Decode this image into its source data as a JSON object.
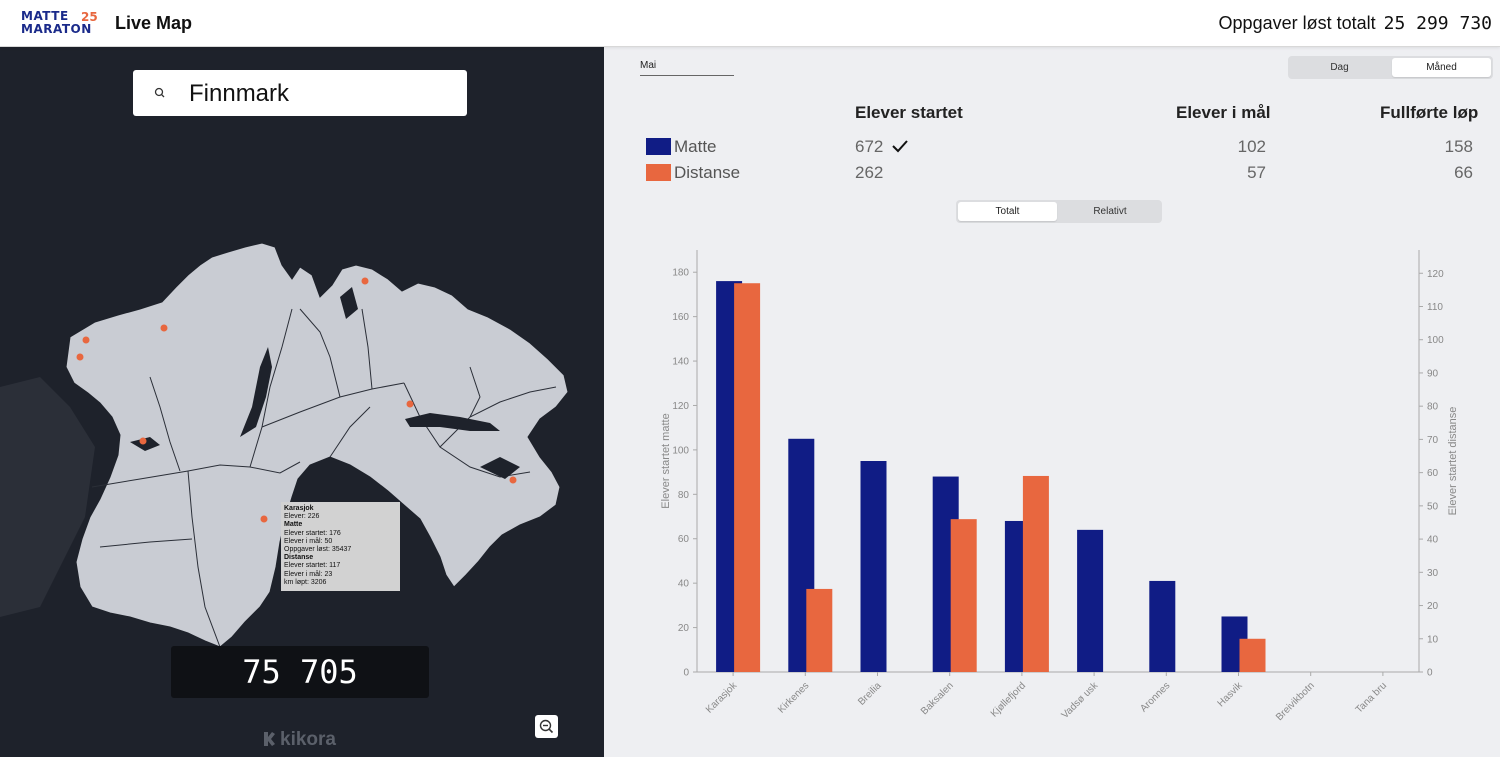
{
  "header": {
    "logo_line1": "MATTE",
    "logo_line2": "MARATON",
    "logo_year": "25",
    "app_title": "Live Map",
    "total_label": "Oppgaver løst totalt",
    "total_value": "25 299 730"
  },
  "map_panel": {
    "search_value": "Finnmark",
    "counter": "75 705",
    "brand": "kikora",
    "tooltip": {
      "place": "Karasjok",
      "elever": "Elever: 226",
      "matte_heading": "Matte",
      "matte_startet": "Elever startet: 176",
      "matte_i_maal": "Elever i mål: 50",
      "oppgaver": "Oppgaver løst: 35437",
      "distanse_heading": "Distanse",
      "distanse_startet": "Elever startet: 117",
      "distanse_i_maal": "Elever i mål: 23",
      "km": "km løpt: 3206"
    }
  },
  "stats_panel": {
    "month": "Mai",
    "period_options": [
      "Dag",
      "Måned"
    ],
    "period_selected": "Måned",
    "columns": [
      "Elever startet",
      "Elever i mål",
      "Fullførte løp"
    ],
    "rows": [
      {
        "label": "Matte",
        "color": "#101c85",
        "startet": "672",
        "i_maal": "102",
        "fullforte": "158"
      },
      {
        "label": "Distanse",
        "color": "#e8673f",
        "startet": "262",
        "i_maal": "57",
        "fullforte": "66"
      }
    ],
    "mode_options": [
      "Totalt",
      "Relativt"
    ],
    "mode_selected": "Totalt"
  },
  "colors": {
    "matte": "#101c85",
    "distanse": "#e8673f",
    "map_bg": "#1e222b",
    "land": "#c9ccd3"
  },
  "chart_data": {
    "type": "bar",
    "categories": [
      "Karasjok",
      "Kirkenes",
      "Breilia",
      "Baksalen",
      "Kjøllefjord",
      "Vadsø usk",
      "Aronnes",
      "Hasvik",
      "Breivikbotn",
      "Tana bru"
    ],
    "series": [
      {
        "name": "Matte",
        "axis": "left",
        "values": [
          176,
          105,
          95,
          88,
          68,
          64,
          41,
          25,
          0,
          0
        ]
      },
      {
        "name": "Distanse",
        "axis": "right",
        "values": [
          117,
          25,
          0,
          46,
          59,
          0,
          0,
          10,
          0,
          0
        ]
      }
    ],
    "ylabel": "Elever startet matte",
    "ylabel_right": "Elever startet distanse",
    "ylim": [
      0,
      190
    ],
    "ylim_right": [
      0,
      127
    ],
    "yticks": [
      0,
      20,
      40,
      60,
      80,
      100,
      120,
      140,
      160,
      180
    ],
    "yticks_right": [
      0,
      10,
      20,
      30,
      40,
      50,
      60,
      70,
      80,
      90,
      100,
      110,
      120
    ]
  }
}
